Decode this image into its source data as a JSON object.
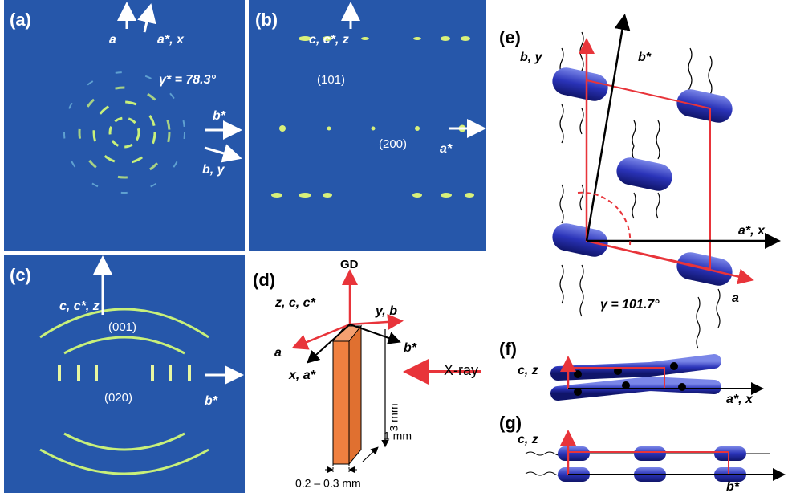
{
  "panels": [
    {
      "label": "(a)",
      "labels": [
        "a",
        "a*, x",
        "γ* = 78.3°",
        "b*",
        "b, y"
      ]
    },
    {
      "label": "(b)",
      "labels": [
        "c, c*, z",
        "(101)",
        "(200)",
        "a*"
      ]
    },
    {
      "label": "(c)",
      "labels": [
        "c, c*, z",
        "(001)",
        "(020)",
        "b*"
      ]
    },
    {
      "label": "(d)",
      "labels": [
        "GD",
        "z, c, c*",
        "y, b",
        "a",
        "b*",
        "x, a*",
        "3 mm",
        "X-ray",
        "1 mm",
        "0.2 – 0.3 mm"
      ]
    },
    {
      "label": "(e)",
      "labels": [
        "b, y",
        "b*",
        "a*, x",
        "γ = 101.7°",
        "a"
      ]
    },
    {
      "label": "(f)",
      "labels": [
        "c, z",
        "a*, x"
      ]
    },
    {
      "label": "(g)",
      "labels": [
        "c, z",
        "b*"
      ]
    }
  ]
}
